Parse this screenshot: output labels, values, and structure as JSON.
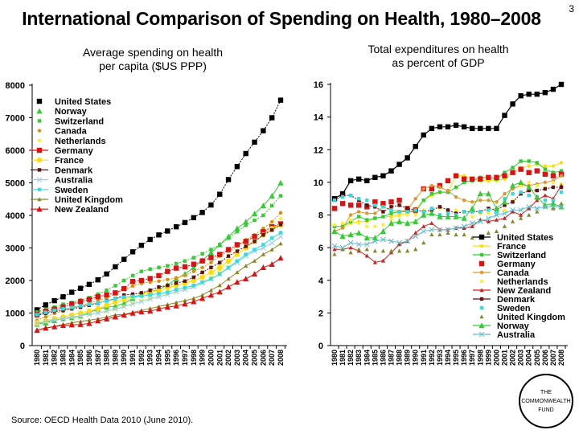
{
  "header": {
    "title": "International Comparison of Spending on Health, 1980–2008",
    "page_number": "3"
  },
  "footer": {
    "source": "Source: OECD Health Data 2010 (June 2010).",
    "logo_lines": [
      "THE",
      "COMMONWEALTH",
      "FUND"
    ]
  },
  "chart_data": [
    {
      "type": "line",
      "title": "Average spending on health per capita ($US PPP)",
      "title_lines": [
        "Average spending on health",
        "per capita ($US PPP)"
      ],
      "xlabel": "",
      "ylabel": "",
      "ylim": [
        0,
        8000
      ],
      "yticks": [
        0,
        1000,
        2000,
        3000,
        4000,
        5000,
        6000,
        7000,
        8000
      ],
      "x": [
        "1980",
        "1981",
        "1982",
        "1983",
        "1984",
        "1985",
        "1986",
        "1987",
        "1988",
        "1989",
        "1990",
        "1991",
        "1992",
        "1993",
        "1994",
        "1995",
        "1996",
        "1997",
        "1998",
        "1999",
        "2000",
        "2001",
        "2002",
        "2003",
        "2004",
        "2005",
        "2006",
        "2007",
        "2008"
      ],
      "grid": false,
      "legend": "top-left",
      "series": [
        {
          "name": "United States",
          "color": "#000000",
          "marker": "square",
          "line": "dotted",
          "values": [
            1100,
            1250,
            1380,
            1500,
            1640,
            1760,
            1880,
            2020,
            2200,
            2420,
            2650,
            2880,
            3080,
            3260,
            3400,
            3520,
            3650,
            3780,
            3930,
            4090,
            4320,
            4650,
            5100,
            5500,
            5900,
            6250,
            6600,
            7000,
            7540
          ]
        },
        {
          "name": "Norway",
          "color": "#33cc33",
          "marker": "triangle",
          "line": "solid",
          "values": [
            660,
            700,
            770,
            830,
            860,
            910,
            1020,
            1120,
            1180,
            1210,
            1300,
            1450,
            1580,
            1650,
            1730,
            1860,
            2050,
            2200,
            2400,
            2620,
            2850,
            3100,
            3350,
            3600,
            3800,
            4050,
            4300,
            4600,
            5000
          ]
        },
        {
          "name": "Switzerland",
          "color": "#33cc33",
          "marker": "square-small",
          "line": "dotted",
          "values": [
            1030,
            1120,
            1180,
            1270,
            1320,
            1400,
            1470,
            1580,
            1700,
            1840,
            2000,
            2150,
            2280,
            2350,
            2400,
            2450,
            2520,
            2600,
            2700,
            2820,
            2950,
            3100,
            3300,
            3500,
            3700,
            3850,
            4000,
            4300,
            4600
          ]
        },
        {
          "name": "Canada",
          "color": "#e68a00",
          "marker": "circle-small",
          "line": "dotted",
          "values": [
            780,
            880,
            990,
            1060,
            1140,
            1220,
            1300,
            1380,
            1480,
            1590,
            1720,
            1830,
            1910,
            1950,
            1980,
            2030,
            2080,
            2160,
            2280,
            2400,
            2550,
            2750,
            2900,
            3050,
            3250,
            3400,
            3600,
            3800,
            4080
          ]
        },
        {
          "name": "Netherlands",
          "color": "#ffee33",
          "marker": "circle-small",
          "line": "dotted",
          "values": [
            730,
            780,
            820,
            850,
            880,
            920,
            960,
            1010,
            1060,
            1120,
            1200,
            1300,
            1380,
            1460,
            1520,
            1600,
            1660,
            1730,
            1830,
            1950,
            2100,
            2300,
            2550,
            2800,
            3050,
            3200,
            3400,
            3650,
            3900
          ]
        },
        {
          "name": "Germany",
          "color": "#dd1111",
          "marker": "square",
          "line": "dotted",
          "values": [
            950,
            1050,
            1120,
            1190,
            1280,
            1350,
            1420,
            1500,
            1560,
            1620,
            1750,
            1970,
            2000,
            2060,
            2150,
            2280,
            2380,
            2420,
            2500,
            2600,
            2700,
            2800,
            2950,
            3100,
            3200,
            3350,
            3500,
            3650,
            3740
          ]
        },
        {
          "name": "France",
          "color": "#ffdd00",
          "marker": "circle",
          "line": "solid",
          "values": [
            680,
            760,
            830,
            880,
            940,
            1000,
            1060,
            1140,
            1240,
            1330,
            1420,
            1500,
            1580,
            1650,
            1700,
            1780,
            1850,
            1920,
            2000,
            2100,
            2250,
            2400,
            2600,
            2800,
            3000,
            3200,
            3400,
            3600,
            3700
          ]
        },
        {
          "name": "Denmark",
          "color": "#661111",
          "marker": "square-small",
          "line": "dotted",
          "values": [
            920,
            990,
            1050,
            1080,
            1130,
            1180,
            1240,
            1300,
            1380,
            1440,
            1550,
            1580,
            1620,
            1700,
            1800,
            1850,
            1920,
            1980,
            2100,
            2250,
            2400,
            2550,
            2750,
            2900,
            3050,
            3200,
            3400,
            3550,
            3720
          ]
        },
        {
          "name": "Australia",
          "color": "#99ccee",
          "marker": "x",
          "line": "solid",
          "values": [
            680,
            740,
            790,
            830,
            880,
            920,
            960,
            1000,
            1060,
            1120,
            1200,
            1280,
            1350,
            1430,
            1500,
            1570,
            1650,
            1720,
            1800,
            1920,
            2050,
            2200,
            2380,
            2550,
            2750,
            2900,
            3000,
            3150,
            3350
          ]
        },
        {
          "name": "Sweden",
          "color": "#33dddd",
          "marker": "square-small",
          "line": "solid",
          "values": [
            950,
            1020,
            1080,
            1130,
            1170,
            1220,
            1270,
            1310,
            1370,
            1430,
            1490,
            1510,
            1520,
            1560,
            1600,
            1640,
            1720,
            1780,
            1850,
            1950,
            2050,
            2200,
            2400,
            2600,
            2800,
            2950,
            3100,
            3300,
            3470
          ]
        },
        {
          "name": "United Kingdom",
          "color": "#888822",
          "marker": "triangle-small",
          "line": "solid",
          "values": [
            480,
            540,
            590,
            650,
            700,
            740,
            780,
            820,
            880,
            940,
            960,
            1020,
            1080,
            1140,
            1200,
            1260,
            1320,
            1380,
            1450,
            1550,
            1700,
            1850,
            2050,
            2250,
            2450,
            2600,
            2800,
            2950,
            3130
          ]
        },
        {
          "name": "New Zealand",
          "color": "#dd1111",
          "marker": "triangle",
          "line": "solid",
          "values": [
            470,
            540,
            580,
            620,
            640,
            650,
            680,
            760,
            820,
            880,
            940,
            1000,
            1040,
            1060,
            1130,
            1180,
            1220,
            1280,
            1350,
            1450,
            1550,
            1650,
            1800,
            1950,
            2050,
            2200,
            2400,
            2500,
            2690
          ]
        }
      ]
    },
    {
      "type": "line",
      "title": "Total expenditures on health as percent of GDP",
      "title_lines": [
        "Total expenditures on health",
        "as percent of GDP"
      ],
      "xlabel": "",
      "ylabel": "",
      "ylim": [
        0,
        16
      ],
      "yticks": [
        0,
        2,
        4,
        6,
        8,
        10,
        12,
        14,
        16
      ],
      "x": [
        "1980",
        "1981",
        "1982",
        "1983",
        "1984",
        "1985",
        "1986",
        "1987",
        "1988",
        "1989",
        "1990",
        "1991",
        "1992",
        "1993",
        "1994",
        "1995",
        "1996",
        "1997",
        "1998",
        "1999",
        "2000",
        "2001",
        "2002",
        "2003",
        "2004",
        "2005",
        "2006",
        "2007",
        "2008"
      ],
      "grid": false,
      "legend": "bottom-right",
      "series": [
        {
          "name": "United States",
          "color": "#000000",
          "marker": "square",
          "line": "solid",
          "values": [
            9.0,
            9.3,
            10.1,
            10.2,
            10.1,
            10.3,
            10.4,
            10.7,
            11.1,
            11.5,
            12.2,
            12.9,
            13.3,
            13.4,
            13.4,
            13.5,
            13.4,
            13.3,
            13.3,
            13.3,
            13.3,
            14.1,
            14.8,
            15.3,
            15.4,
            15.4,
            15.5,
            15.7,
            16.0
          ]
        },
        {
          "name": "France",
          "color": "#ffdd00",
          "marker": "circle-small",
          "line": "solid",
          "values": [
            7.0,
            7.2,
            7.5,
            7.6,
            7.6,
            7.8,
            7.9,
            7.9,
            8.0,
            8.1,
            8.4,
            8.9,
            9.2,
            9.4,
            9.4,
            10.4,
            10.4,
            10.2,
            10.1,
            10.1,
            10.1,
            10.2,
            10.6,
            10.9,
            11.0,
            11.1,
            11.0,
            11.0,
            11.2
          ]
        },
        {
          "name": "Switzerland",
          "color": "#33cc33",
          "marker": "square-small",
          "line": "solid",
          "values": [
            7.3,
            7.3,
            7.6,
            7.9,
            7.7,
            7.8,
            7.9,
            8.1,
            8.2,
            8.2,
            8.2,
            8.9,
            9.3,
            9.4,
            9.4,
            9.7,
            10.0,
            10.1,
            10.3,
            10.3,
            10.2,
            10.6,
            10.9,
            11.3,
            11.3,
            11.2,
            10.8,
            10.6,
            10.7
          ]
        },
        {
          "name": "Germany",
          "color": "#dd1111",
          "marker": "square",
          "line": "none",
          "values": [
            8.4,
            8.7,
            8.6,
            8.6,
            8.5,
            8.8,
            8.7,
            8.8,
            8.9,
            8.4,
            8.3,
            9.6,
            9.6,
            9.8,
            10.1,
            10.4,
            10.2,
            10.2,
            10.2,
            10.3,
            10.3,
            10.4,
            10.6,
            10.8,
            10.6,
            10.7,
            10.5,
            10.4,
            10.5
          ]
        },
        {
          "name": "Canada",
          "color": "#e0962e",
          "marker": "circle-small",
          "line": "solid",
          "values": [
            7.0,
            7.2,
            8.0,
            8.2,
            8.1,
            8.1,
            8.5,
            8.3,
            8.2,
            8.3,
            9.0,
            9.6,
            9.8,
            9.7,
            9.5,
            9.1,
            8.9,
            8.8,
            8.9,
            8.9,
            8.8,
            9.3,
            9.6,
            9.8,
            9.8,
            9.9,
            10.0,
            10.1,
            10.4
          ]
        },
        {
          "name": "Netherlands",
          "color": "#ffee33",
          "marker": "circle-small",
          "line": "none",
          "values": [
            7.4,
            7.5,
            7.7,
            7.5,
            7.3,
            7.3,
            7.4,
            7.7,
            7.9,
            8.0,
            8.0,
            8.3,
            8.4,
            8.4,
            8.3,
            8.3,
            8.2,
            7.9,
            8.1,
            8.1,
            8.0,
            8.3,
            8.9,
            9.8,
            10.0,
            9.8,
            9.7,
            10.0,
            9.9
          ]
        },
        {
          "name": "New Zealand",
          "color": "#cc2222",
          "marker": "triangle-small",
          "line": "solid",
          "values": [
            5.9,
            5.9,
            6.0,
            5.8,
            5.5,
            5.1,
            5.2,
            5.7,
            6.2,
            6.4,
            6.9,
            7.3,
            7.5,
            7.1,
            7.1,
            7.2,
            7.2,
            7.3,
            7.7,
            7.6,
            7.7,
            7.8,
            8.2,
            8.0,
            8.4,
            8.9,
            9.2,
            9.0,
            9.8
          ]
        },
        {
          "name": "Denmark",
          "color": "#661111",
          "marker": "square-small",
          "line": "dotted",
          "values": [
            8.9,
            9.2,
            9.2,
            8.9,
            8.6,
            8.5,
            8.2,
            8.5,
            8.6,
            8.4,
            8.3,
            8.2,
            8.3,
            8.5,
            8.3,
            8.1,
            8.2,
            8.2,
            8.2,
            8.4,
            8.3,
            8.6,
            8.8,
            9.3,
            9.5,
            9.5,
            9.6,
            9.7,
            9.7
          ]
        },
        {
          "name": "Sweden",
          "color": "#33dddd",
          "marker": "square-small",
          "line": "none",
          "values": [
            8.9,
            9.1,
            9.2,
            9.0,
            8.9,
            8.6,
            8.5,
            8.3,
            8.2,
            8.2,
            8.3,
            8.2,
            8.4,
            8.0,
            8.1,
            8.0,
            8.2,
            8.2,
            8.2,
            8.3,
            8.2,
            9.0,
            9.3,
            9.4,
            9.2,
            9.1,
            8.9,
            8.9,
            9.4
          ]
        },
        {
          "name": "United Kingdom",
          "color": "#888822",
          "marker": "triangle-small",
          "line": "none",
          "values": [
            5.6,
            5.9,
            5.7,
            5.9,
            5.9,
            5.8,
            5.8,
            5.8,
            5.8,
            5.8,
            5.9,
            6.3,
            6.8,
            6.8,
            6.9,
            6.8,
            6.8,
            6.6,
            6.7,
            6.9,
            7.0,
            7.3,
            7.6,
            7.8,
            8.0,
            8.2,
            8.5,
            8.4,
            8.7
          ]
        },
        {
          "name": "Norway",
          "color": "#33cc33",
          "marker": "triangle",
          "line": "solid",
          "values": [
            7.0,
            6.7,
            6.8,
            6.9,
            6.6,
            6.6,
            7.0,
            7.5,
            7.6,
            7.5,
            7.6,
            8.0,
            8.1,
            7.9,
            7.9,
            7.9,
            7.8,
            8.4,
            9.3,
            9.3,
            8.4,
            8.8,
            9.8,
            10.0,
            9.7,
            9.1,
            8.6,
            8.7,
            8.5
          ]
        },
        {
          "name": "Australia",
          "color": "#66bbcc",
          "marker": "x",
          "line": "solid",
          "values": [
            6.1,
            6.0,
            6.3,
            6.2,
            6.2,
            6.4,
            6.5,
            6.4,
            6.3,
            6.4,
            6.7,
            7.0,
            7.1,
            7.1,
            7.1,
            7.2,
            7.3,
            7.5,
            7.6,
            7.8,
            8.0,
            8.1,
            8.3,
            8.3,
            8.5,
            8.4,
            8.5,
            8.5,
            8.5
          ]
        }
      ]
    }
  ]
}
